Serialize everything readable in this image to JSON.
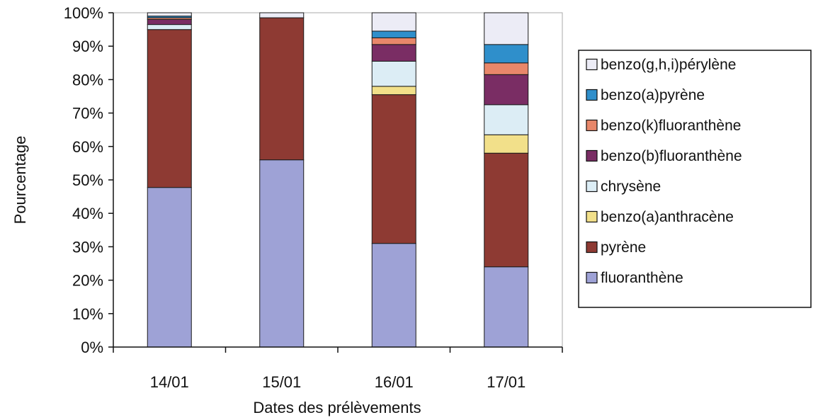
{
  "chart_data": {
    "type": "bar",
    "stacked": true,
    "percent_stacked": true,
    "title": "",
    "xlabel": "Dates des prélèvements",
    "ylabel": "Pourcentage",
    "ylim": [
      0,
      100
    ],
    "y_tick_labels": [
      "0%",
      "10%",
      "20%",
      "30%",
      "40%",
      "50%",
      "60%",
      "70%",
      "80%",
      "90%",
      "100%"
    ],
    "categories": [
      "14/01",
      "15/01",
      "16/01",
      "17/01"
    ],
    "grid": false,
    "legend_position": "right",
    "legend_order": [
      "benzo(g,h,i)pérylène",
      "benzo(a)pyrène",
      "benzo(k)fluoranthène",
      "benzo(b)fluoranthène",
      "chrysène",
      "benzo(a)anthracène",
      "pyrène",
      "fluoranthène"
    ],
    "series": [
      {
        "name": "fluoranthène",
        "color": "#9ea2d6",
        "values": [
          47.5,
          56,
          31,
          24
        ]
      },
      {
        "name": "pyrène",
        "color": "#8e3a33",
        "values": [
          47,
          42.5,
          44.5,
          34
        ]
      },
      {
        "name": "benzo(a)anthracène",
        "color": "#f2e08a",
        "values": [
          0,
          0,
          2.5,
          5.5
        ]
      },
      {
        "name": "chrysène",
        "color": "#dcedf5",
        "values": [
          1.5,
          0,
          7.5,
          9
        ]
      },
      {
        "name": "benzo(b)fluoranthène",
        "color": "#7a2d64",
        "values": [
          1.5,
          0,
          5,
          9
        ]
      },
      {
        "name": "benzo(k)fluoranthène",
        "color": "#e8876a",
        "values": [
          0.5,
          0,
          2,
          3.5
        ]
      },
      {
        "name": "benzo(a)pyrène",
        "color": "#2f8fcb",
        "values": [
          0.5,
          0,
          2,
          5.5
        ]
      },
      {
        "name": "benzo(g,h,i)pérylène",
        "color": "#ececf6",
        "values": [
          1,
          1.5,
          5.5,
          9.5
        ]
      }
    ]
  }
}
